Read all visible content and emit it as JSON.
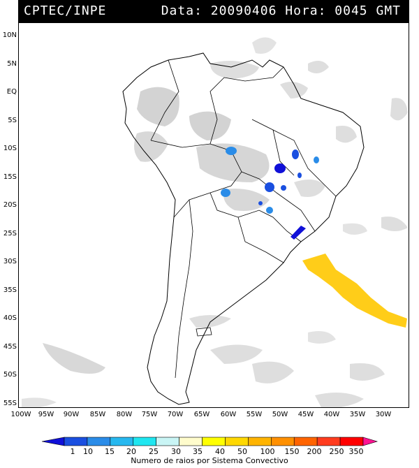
{
  "header": {
    "source": "CPTEC/INPE",
    "datetime": "Data: 20090406 Hora: 0045 GMT"
  },
  "axes": {
    "lat_labels": [
      "10N",
      "5N",
      "EQ",
      "5S",
      "10S",
      "15S",
      "20S",
      "25S",
      "30S",
      "35S",
      "40S",
      "45S",
      "50S",
      "55S"
    ],
    "lon_labels": [
      "100W",
      "95W",
      "90W",
      "85W",
      "80W",
      "75W",
      "70W",
      "65W",
      "60W",
      "55W",
      "50W",
      "45W",
      "40W",
      "35W",
      "30W"
    ]
  },
  "legend": {
    "tick_labels": [
      "1",
      "10",
      "15",
      "20",
      "25",
      "30",
      "35",
      "40",
      "50",
      "100",
      "150",
      "200",
      "250",
      "350"
    ],
    "caption": "Numero de raios por Sistema Convectivo",
    "colors": [
      "#1010d8",
      "#1a4fe0",
      "#2a8ce8",
      "#27b8ef",
      "#1fe6f0",
      "#c9f5f5",
      "#fffccc",
      "#ffff00",
      "#ffd800",
      "#ffb400",
      "#ff9000",
      "#ff6400",
      "#ff3c1e",
      "#ff0000",
      "#ff1493"
    ]
  }
}
